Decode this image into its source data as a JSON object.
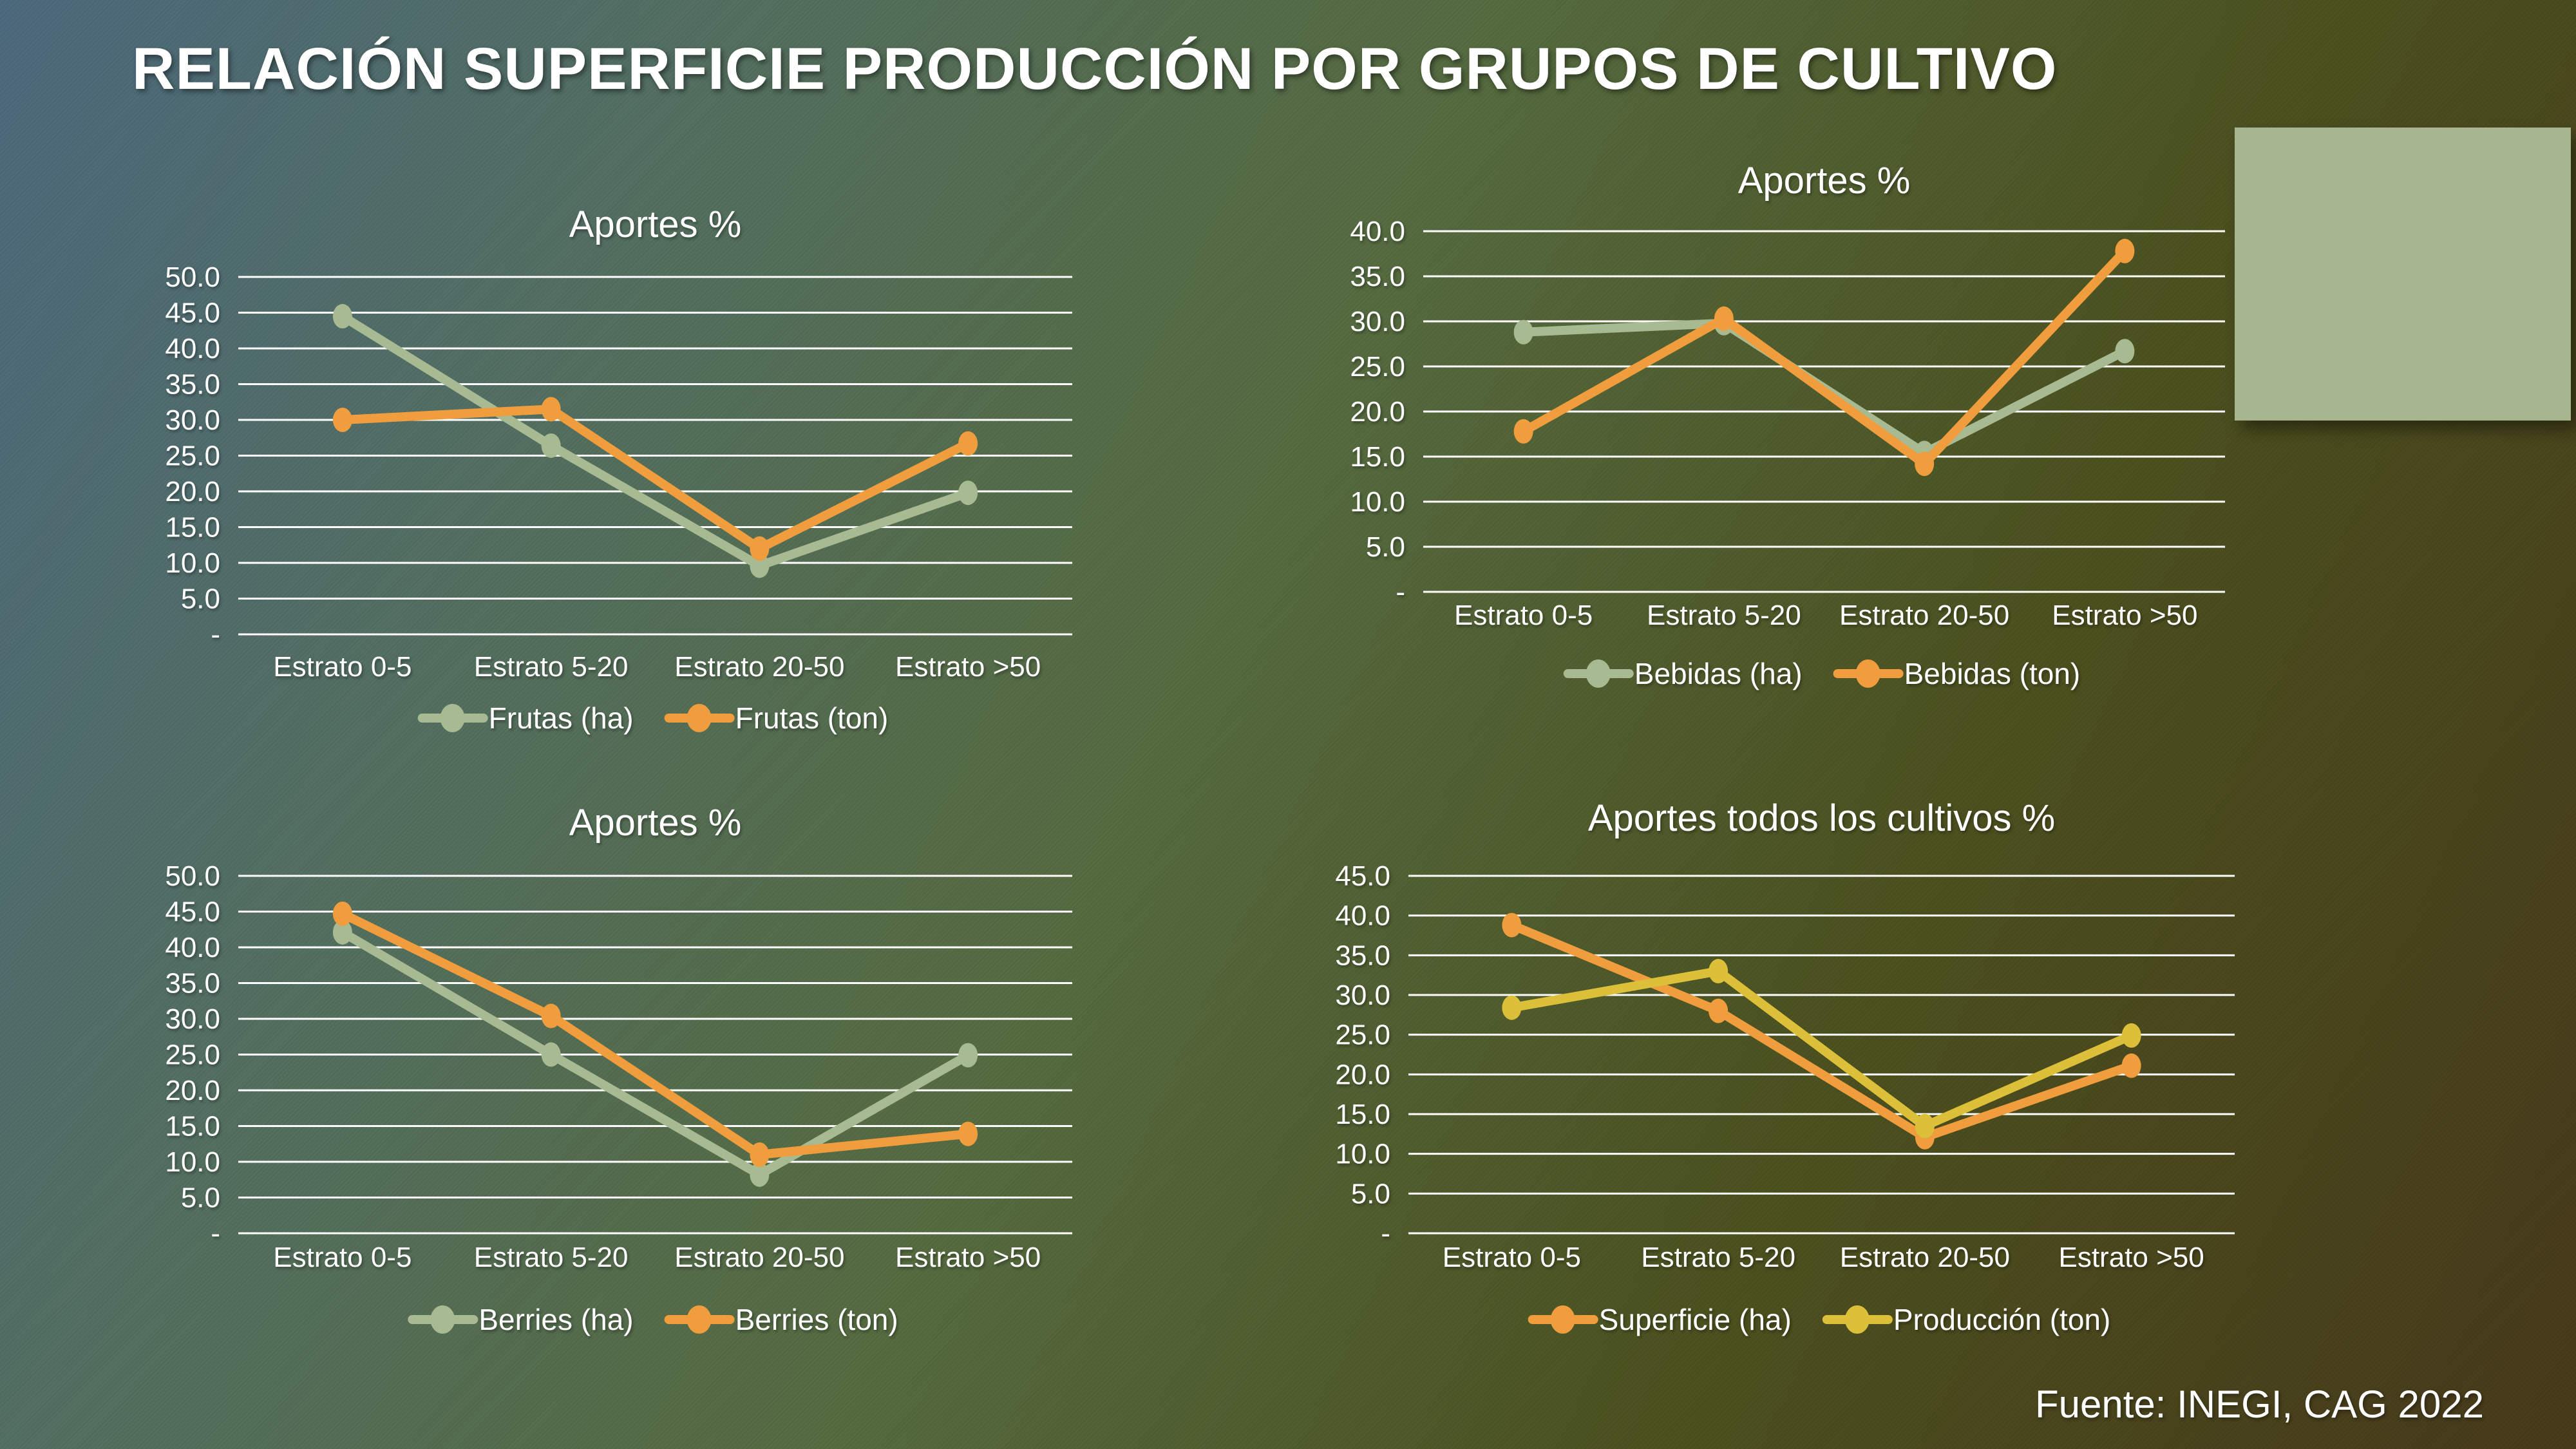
{
  "slide": {
    "title": "RELACIÓN SUPERFICIE PRODUCCIÓN POR GRUPOS DE CULTIVO",
    "source": "Fuente: INEGI, CAG 2022",
    "background_colors": [
      "#4d6a7e",
      "#547062",
      "#566c41",
      "#4c511f",
      "#483a1b"
    ]
  },
  "colors": {
    "sage": "#a8ba91",
    "orange": "#f09d3e",
    "gold": "#ddc039",
    "grid": "#ffffff",
    "text": "#ffffff",
    "panel": "#a8b68f"
  },
  "categories": [
    "Estrato 0-5",
    "Estrato 5-20",
    "Estrato 20-50",
    "Estrato >50"
  ],
  "chart_data": [
    {
      "id": "frutas",
      "type": "line",
      "title": "Aportes %",
      "categories": [
        "Estrato 0-5",
        "Estrato 5-20",
        "Estrato 20-50",
        "Estrato >50"
      ],
      "series": [
        {
          "name": "Frutas (ha)",
          "color": "sage",
          "values": [
            44.5,
            26.4,
            9.6,
            19.8
          ]
        },
        {
          "name": "Frutas (ton)",
          "color": "orange",
          "values": [
            30.0,
            31.5,
            12.0,
            26.7
          ]
        }
      ],
      "ylim": [
        0,
        50
      ],
      "ystep": 5,
      "ytick_labels": [
        "50.0",
        "45.0",
        "40.0",
        "35.0",
        "30.0",
        "25.0",
        "20.0",
        "15.0",
        "10.0",
        "5.0",
        "-"
      ],
      "grid": true,
      "legend_position": "bottom"
    },
    {
      "id": "bebidas",
      "type": "line",
      "title": "Aportes %",
      "categories": [
        "Estrato 0-5",
        "Estrato 5-20",
        "Estrato 20-50",
        "Estrato >50"
      ],
      "series": [
        {
          "name": "Bebidas (ha)",
          "color": "sage",
          "values": [
            28.8,
            29.8,
            15.4,
            26.7
          ]
        },
        {
          "name": "Bebidas (ton)",
          "color": "orange",
          "values": [
            17.8,
            30.3,
            14.2,
            37.8
          ]
        }
      ],
      "ylim": [
        0,
        40
      ],
      "ystep": 5,
      "ytick_labels": [
        "40.0",
        "35.0",
        "30.0",
        "25.0",
        "20.0",
        "15.0",
        "10.0",
        "5.0",
        "-"
      ],
      "grid": true,
      "legend_position": "bottom"
    },
    {
      "id": "berries",
      "type": "line",
      "title": "Aportes %",
      "categories": [
        "Estrato 0-5",
        "Estrato 5-20",
        "Estrato 20-50",
        "Estrato >50"
      ],
      "series": [
        {
          "name": "Berries (ha)",
          "color": "sage",
          "values": [
            42.1,
            25.0,
            8.2,
            24.9
          ]
        },
        {
          "name": "Berries (ton)",
          "color": "orange",
          "values": [
            44.7,
            30.4,
            11.0,
            13.9
          ]
        }
      ],
      "ylim": [
        0,
        50
      ],
      "ystep": 5,
      "ytick_labels": [
        "50.0",
        "45.0",
        "40.0",
        "35.0",
        "30.0",
        "25.0",
        "20.0",
        "15.0",
        "10.0",
        "5.0",
        "-"
      ],
      "grid": true,
      "legend_position": "bottom"
    },
    {
      "id": "todos",
      "type": "line",
      "title": "Aportes todos los cultivos %",
      "categories": [
        "Estrato 0-5",
        "Estrato 5-20",
        "Estrato 20-50",
        "Estrato >50"
      ],
      "series": [
        {
          "name": "Superficie (ha)",
          "color": "orange",
          "values": [
            38.8,
            28.0,
            12.1,
            21.1
          ]
        },
        {
          "name": "Producción (ton)",
          "color": "gold",
          "values": [
            28.4,
            33.0,
            13.5,
            24.9
          ]
        }
      ],
      "ylim": [
        0,
        45
      ],
      "ystep": 5,
      "ytick_labels": [
        "45.0",
        "40.0",
        "35.0",
        "30.0",
        "25.0",
        "20.0",
        "15.0",
        "10.0",
        "5.0",
        "-"
      ],
      "grid": true,
      "legend_position": "bottom"
    }
  ]
}
